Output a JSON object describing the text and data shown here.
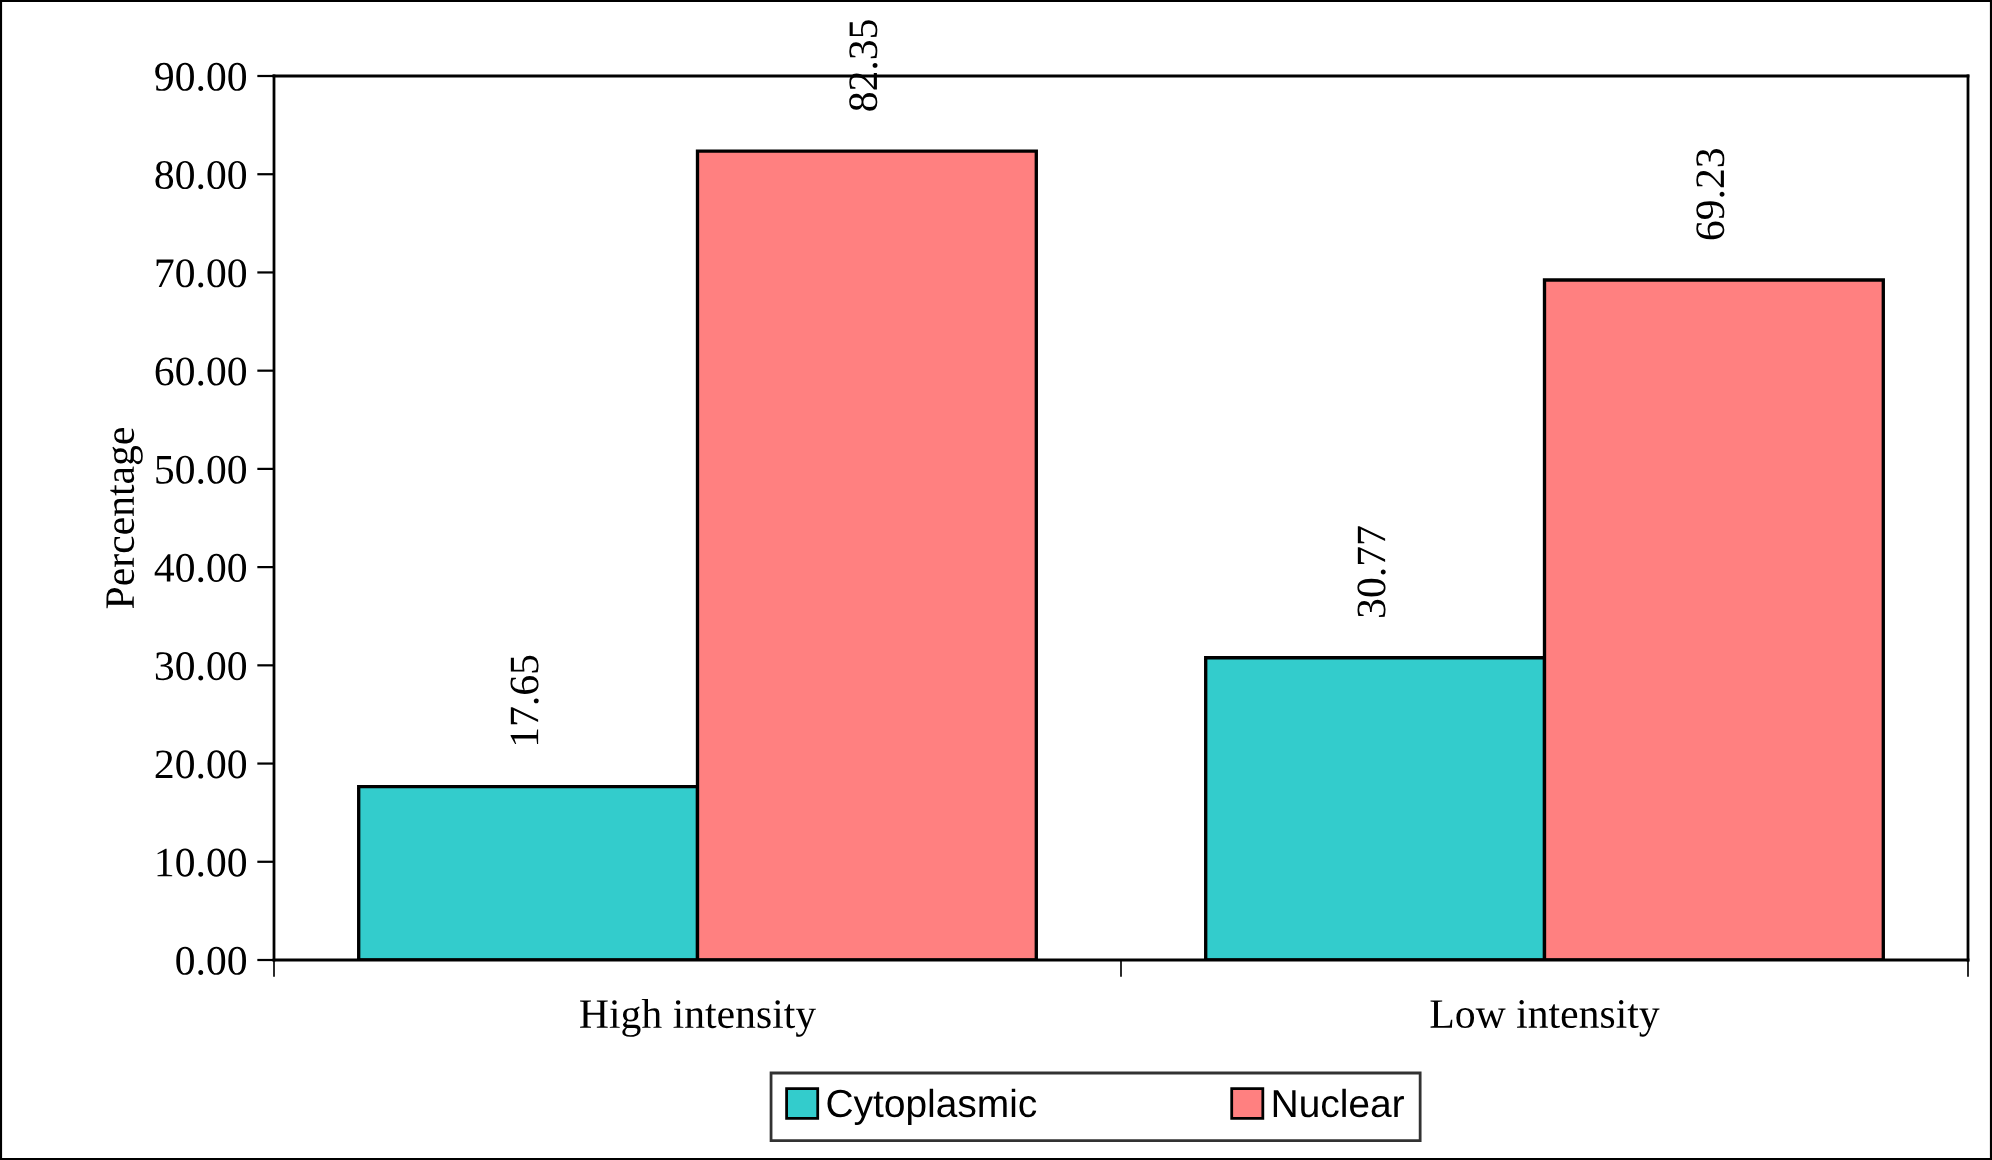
{
  "chart_data": {
    "type": "bar",
    "ylabel": "Percentage",
    "categories": [
      "High intensity",
      "Low intensity"
    ],
    "series": [
      {
        "name": "Cytoplasmic",
        "color": "#33cccc",
        "values": [
          17.65,
          30.77
        ]
      },
      {
        "name": "Nuclear",
        "color": "#ff8080",
        "values": [
          82.35,
          69.23
        ]
      }
    ],
    "ylim": [
      0,
      90
    ],
    "yticks": [
      {
        "value": 0,
        "label": "0.00"
      },
      {
        "value": 10,
        "label": "10.00"
      },
      {
        "value": 20,
        "label": "20.00"
      },
      {
        "value": 30,
        "label": "30.00"
      },
      {
        "value": 40,
        "label": "40.00"
      },
      {
        "value": 50,
        "label": "50.00"
      },
      {
        "value": 60,
        "label": "60.00"
      },
      {
        "value": 70,
        "label": "70.00"
      },
      {
        "value": 80,
        "label": "80.00"
      },
      {
        "value": 90,
        "label": "90.00"
      }
    ],
    "data_labels": true,
    "grid": false,
    "legend": "bottom"
  }
}
